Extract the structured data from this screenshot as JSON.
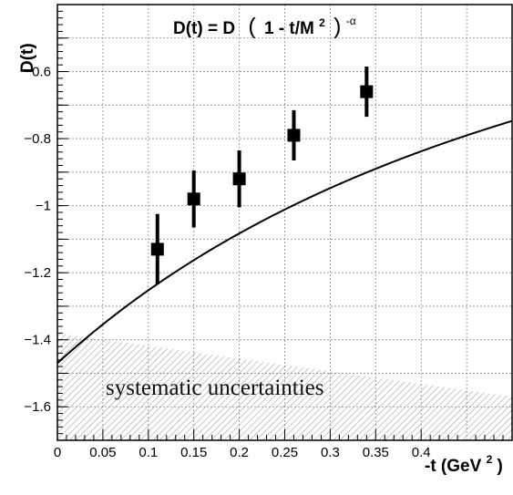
{
  "chart_data": {
    "type": "scatter",
    "formula": {
      "main": "D(t) = D",
      "paren_open": "(",
      "inner": "1 - t/M",
      "inner_sup": "2",
      "paren_close": ")",
      "exp": "-α"
    },
    "ylabel": "D(t)",
    "xlabel": {
      "main": "-t (GeV",
      "sup": "2",
      "close": ")"
    },
    "xlim": [
      0,
      0.5
    ],
    "ylim": [
      -1.7,
      -0.4
    ],
    "x_ticks": [
      {
        "value": 0,
        "label": "0"
      },
      {
        "value": 0.05,
        "label": "0.05"
      },
      {
        "value": 0.1,
        "label": "0.1"
      },
      {
        "value": 0.15,
        "label": "0.15"
      },
      {
        "value": 0.2,
        "label": "0.2"
      },
      {
        "value": 0.25,
        "label": "0.25"
      },
      {
        "value": 0.3,
        "label": "0.3"
      },
      {
        "value": 0.35,
        "label": "0.35"
      },
      {
        "value": 0.4,
        "label": "0.4"
      }
    ],
    "y_ticks": [
      {
        "value": -0.6,
        "label": "−0.6"
      },
      {
        "value": -0.8,
        "label": "−0.8"
      },
      {
        "value": -1.0,
        "label": "−1"
      },
      {
        "value": -1.2,
        "label": "−1.2"
      },
      {
        "value": -1.4,
        "label": "−1.4"
      },
      {
        "value": -1.6,
        "label": "−1.6"
      }
    ],
    "grid": true,
    "points": [
      {
        "x": 0.11,
        "y": -1.13,
        "err": 0.105
      },
      {
        "x": 0.15,
        "y": -0.98,
        "err": 0.085
      },
      {
        "x": 0.2,
        "y": -0.92,
        "err": 0.085
      },
      {
        "x": 0.26,
        "y": -0.79,
        "err": 0.075
      },
      {
        "x": 0.34,
        "y": -0.66,
        "err": 0.075
      }
    ],
    "fit_curve": {
      "D0": -1.47,
      "M2": 0.95,
      "alpha": 1.6
    },
    "systematic_band": {
      "label": "systematic uncertainties",
      "upper": [
        [
          0,
          -1.38
        ],
        [
          0.5,
          -1.57
        ]
      ],
      "lower": -1.7
    },
    "colors": {
      "marker": "#000000",
      "curve": "#000000",
      "grid": "#8a8a8a",
      "band": "#9a9a9a"
    }
  }
}
